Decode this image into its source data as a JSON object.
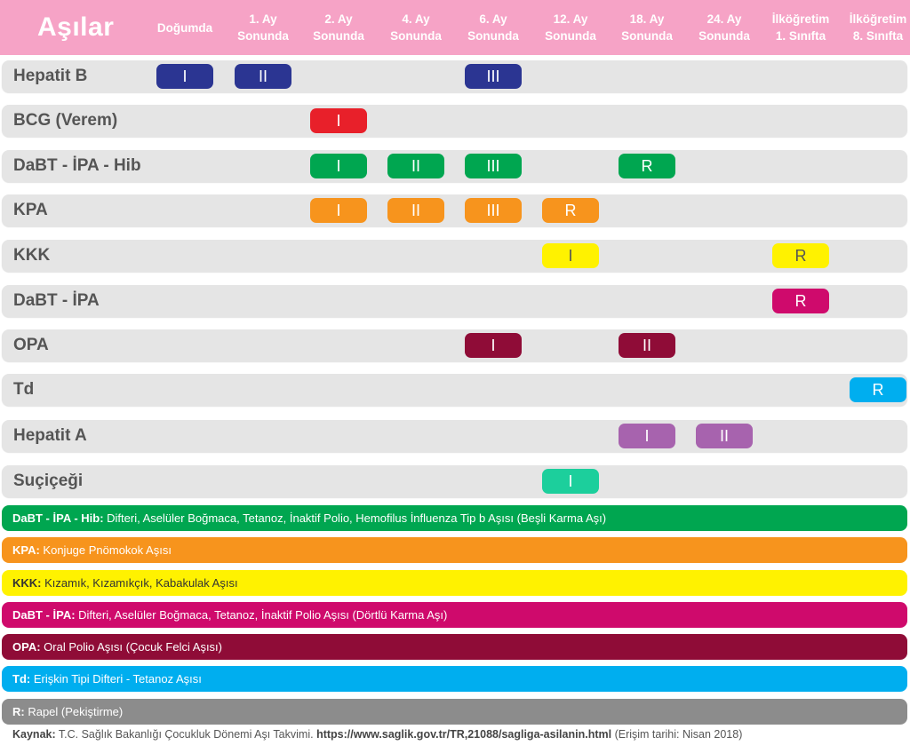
{
  "header": {
    "title": "Aşılar",
    "columns": [
      {
        "l1": "Doğumda",
        "l2": ""
      },
      {
        "l1": "1. Ay",
        "l2": "Sonunda"
      },
      {
        "l1": "2. Ay",
        "l2": "Sonunda"
      },
      {
        "l1": "4. Ay",
        "l2": "Sonunda"
      },
      {
        "l1": "6. Ay",
        "l2": "Sonunda"
      },
      {
        "l1": "12. Ay",
        "l2": "Sonunda"
      },
      {
        "l1": "18. Ay",
        "l2": "Sonunda"
      },
      {
        "l1": "24. Ay",
        "l2": "Sonunda"
      },
      {
        "l1": "İlköğretim",
        "l2": "1. Sınıfta"
      },
      {
        "l1": "İlköğretim",
        "l2": "8. Sınıfta"
      }
    ]
  },
  "rows": [
    {
      "name": "Hepatit B",
      "color": "#2b3592",
      "doses": [
        {
          "col": 0,
          "label": "I"
        },
        {
          "col": 1,
          "label": "II"
        },
        {
          "col": 4,
          "label": "III"
        }
      ]
    },
    {
      "name": "BCG (Verem)",
      "color": "#e8202a",
      "doses": [
        {
          "col": 2,
          "label": "I"
        }
      ]
    },
    {
      "name": "DaBT - İPA - Hib",
      "color": "#00a650",
      "doses": [
        {
          "col": 2,
          "label": "I"
        },
        {
          "col": 3,
          "label": "II"
        },
        {
          "col": 4,
          "label": "III"
        },
        {
          "col": 6,
          "label": "R"
        }
      ]
    },
    {
      "name": "KPA",
      "color": "#f7941d",
      "doses": [
        {
          "col": 2,
          "label": "I"
        },
        {
          "col": 3,
          "label": "II"
        },
        {
          "col": 4,
          "label": "III"
        },
        {
          "col": 5,
          "label": "R"
        }
      ]
    },
    {
      "name": "KKK",
      "color": "#fff200",
      "text_color": "#555555",
      "doses": [
        {
          "col": 5,
          "label": "I"
        },
        {
          "col": 8,
          "label": "R"
        }
      ]
    },
    {
      "name": "DaBT - İPA",
      "color": "#cf0a6c",
      "doses": [
        {
          "col": 8,
          "label": "R"
        }
      ]
    },
    {
      "name": "OPA",
      "color": "#8f0c37",
      "doses": [
        {
          "col": 4,
          "label": "I"
        },
        {
          "col": 6,
          "label": "II"
        }
      ]
    },
    {
      "name": "Td",
      "color": "#00aeef",
      "doses": [
        {
          "col": 9,
          "label": "R"
        }
      ]
    },
    {
      "name": "Hepatit A",
      "color": "#a763ae",
      "doses": [
        {
          "col": 6,
          "label": "I"
        },
        {
          "col": 7,
          "label": "II"
        }
      ]
    },
    {
      "name": "Suçiçeği",
      "color": "#1ccf9c",
      "doses": [
        {
          "col": 5,
          "label": "I"
        }
      ]
    }
  ],
  "legend": [
    {
      "abbr": "DaBT - İPA - Hib:",
      "text": " Difteri, Aselüler Boğmaca, Tetanoz, İnaktif Polio, Hemofilus İnfluenza Tip b Aşısı (Beşli Karma Aşı)",
      "color": "#00a650"
    },
    {
      "abbr": "KPA:",
      "text": " Konjuge Pnömokok Aşısı",
      "color": "#f7941d"
    },
    {
      "abbr": "KKK:",
      "text": " Kızamık, Kızamıkçık, Kabakulak Aşısı",
      "color": "#fff200",
      "dark": true
    },
    {
      "abbr": "DaBT - İPA:",
      "text": " Difteri, Aselüler Boğmaca, Tetanoz, İnaktif Polio Aşısı (Dörtlü Karma Aşı)",
      "color": "#cf0a6c"
    },
    {
      "abbr": "OPA:",
      "text": " Oral Polio Aşısı (Çocuk Felci Aşısı)",
      "color": "#8f0c37"
    },
    {
      "abbr": "Td:",
      "text": " Erişkin Tipi Difteri - Tetanoz Aşısı",
      "color": "#00aeef"
    },
    {
      "abbr": "R:",
      "text": " Rapel (Pekiştirme)",
      "color": "#8c8c8c"
    }
  ],
  "source": {
    "label": "Kaynak:",
    "text": " T.C. Sağlık Bakanlığı Çocukluk Dönemi Aşı Takvimi. ",
    "url": "https://www.saglik.gov.tr/TR,21088/sagliga-asilanin.html",
    "note": " (Erişim tarihi: Nisan 2018)"
  }
}
